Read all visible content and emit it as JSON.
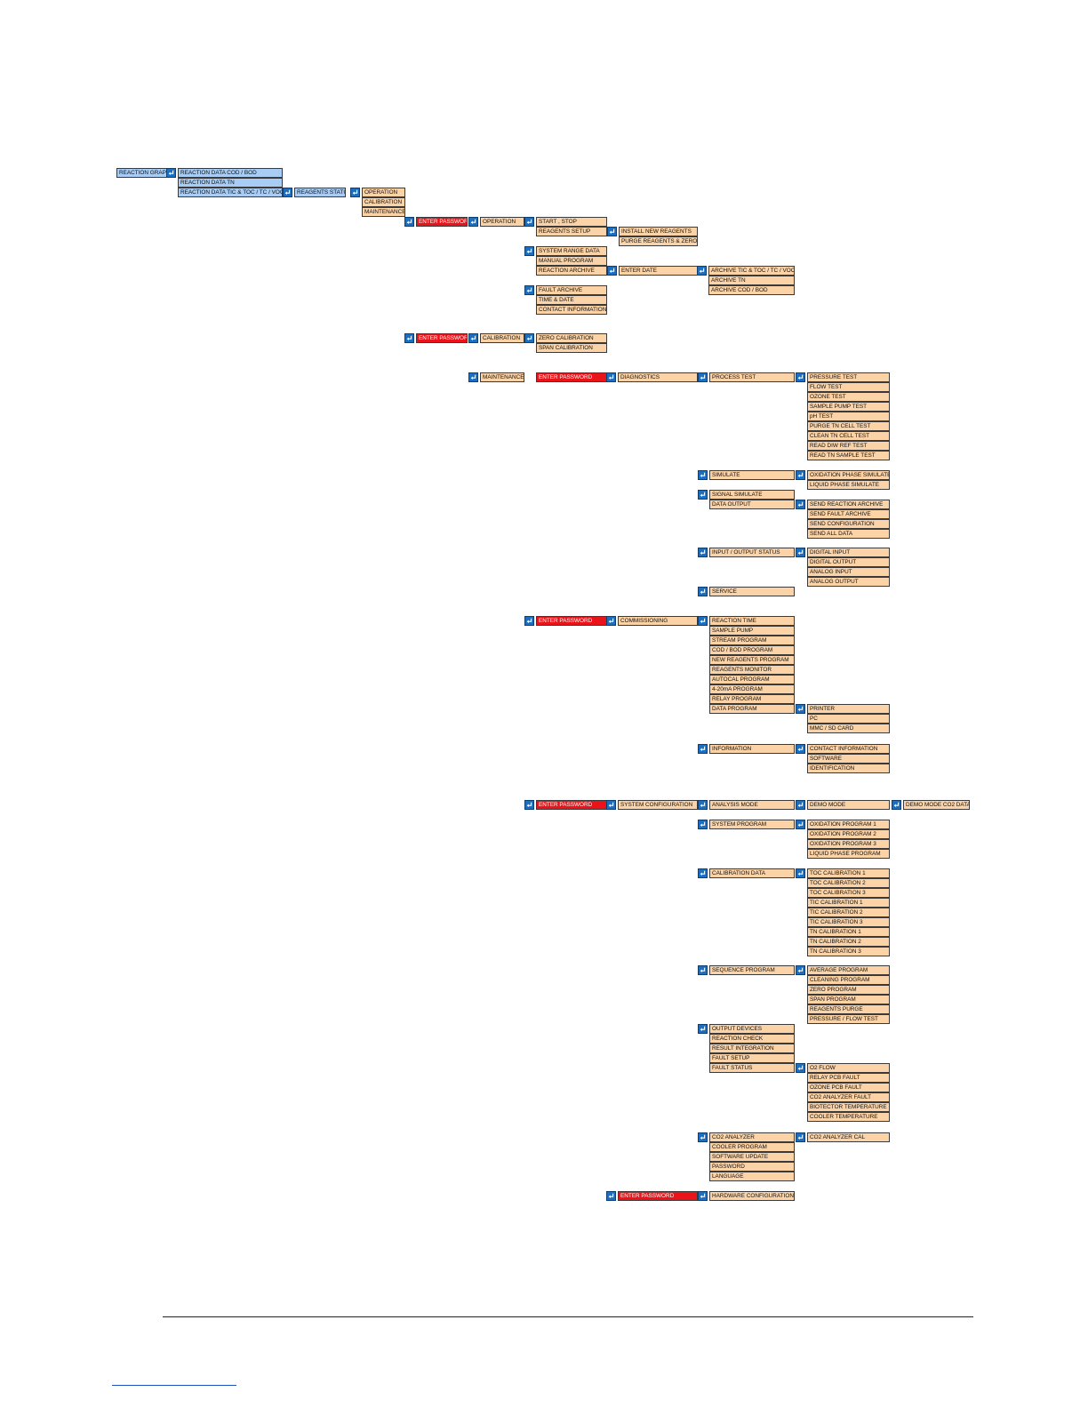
{
  "colors": {
    "menu": "#fbd3a7",
    "graph": "#a8ccf3",
    "password": "#e8141a",
    "enter_key": "#1c6fc0"
  },
  "icons": {
    "enter_key": "enter-arrow-icon"
  },
  "groups": [
    {
      "id": "g01",
      "fill": "blue",
      "items": [
        "REACTION GRAPH"
      ]
    },
    {
      "id": "g02",
      "fill": "blue",
      "items": [
        "REACTION DATA COD / BOD",
        "REACTION DATA TN",
        "REACTION DATA TIC & TOC / TC / VOC"
      ]
    },
    {
      "id": "g03",
      "fill": "blue",
      "items": [
        "REAGENTS STATUS"
      ]
    },
    {
      "id": "g04",
      "fill": "orange",
      "items": [
        "OPERATION",
        "CALIBRATION",
        "MAINTENANCE"
      ]
    },
    {
      "id": "g05",
      "fill": "red",
      "items": [
        "ENTER PASSWORD"
      ]
    },
    {
      "id": "g06",
      "fill": "orange",
      "items": [
        "OPERATION"
      ]
    },
    {
      "id": "g07",
      "fill": "orange",
      "items": [
        "START , STOP",
        "REAGENTS SETUP"
      ]
    },
    {
      "id": "g08",
      "fill": "orange",
      "items": [
        "INSTALL NEW REAGENTS",
        "PURGE REAGENTS & ZERO"
      ]
    },
    {
      "id": "g09",
      "fill": "orange",
      "items": [
        "SYSTEM RANGE DATA",
        "MANUAL PROGRAM",
        "REACTION ARCHIVE"
      ]
    },
    {
      "id": "g10",
      "fill": "orange",
      "items": [
        "ENTER DATE"
      ]
    },
    {
      "id": "g11",
      "fill": "orange",
      "items": [
        "ARCHIVE TIC & TOC / TC / VOC",
        "ARCHIVE TN",
        "ARCHIVE COD / BOD"
      ]
    },
    {
      "id": "g12",
      "fill": "orange",
      "items": [
        "FAULT ARCHIVE",
        "TIME & DATE",
        "CONTACT INFORMATION"
      ]
    },
    {
      "id": "g13",
      "fill": "red",
      "items": [
        "ENTER PASSWORD"
      ]
    },
    {
      "id": "g14",
      "fill": "orange",
      "items": [
        "CALIBRATION"
      ]
    },
    {
      "id": "g15",
      "fill": "orange",
      "items": [
        "ZERO CALIBRATION",
        "SPAN CALIBRATION"
      ]
    },
    {
      "id": "g16",
      "fill": "orange",
      "items": [
        "MAINTENANCE"
      ]
    },
    {
      "id": "g17",
      "fill": "red",
      "items": [
        "ENTER PASSWORD"
      ]
    },
    {
      "id": "g18",
      "fill": "orange",
      "items": [
        "DIAGNOSTICS"
      ]
    },
    {
      "id": "g19",
      "fill": "orange",
      "items": [
        "PROCESS TEST"
      ]
    },
    {
      "id": "g20",
      "fill": "orange",
      "items": [
        "PRESSURE TEST",
        "FLOW TEST",
        "OZONE TEST",
        "SAMPLE PUMP TEST",
        "pH TEST",
        "PURGE TN CELL TEST",
        "CLEAN TN CELL TEST",
        "READ DIW REF TEST",
        "READ TN SAMPLE TEST"
      ]
    },
    {
      "id": "g21",
      "fill": "orange",
      "items": [
        "SIMULATE"
      ]
    },
    {
      "id": "g22",
      "fill": "orange",
      "items": [
        "OXIDATION PHASE SIMULATE",
        "LIQUID PHASE SIMULATE"
      ]
    },
    {
      "id": "g23",
      "fill": "orange",
      "items": [
        "SIGNAL SIMULATE",
        "DATA OUTPUT"
      ]
    },
    {
      "id": "g24",
      "fill": "orange",
      "items": [
        "SEND REACTION ARCHIVE",
        "SEND FAULT ARCHIVE",
        "SEND CONFIGURATION",
        "SEND ALL DATA"
      ]
    },
    {
      "id": "g25",
      "fill": "orange",
      "items": [
        "INPUT / OUTPUT STATUS"
      ]
    },
    {
      "id": "g26",
      "fill": "orange",
      "items": [
        "DIGITAL INPUT",
        "DIGITAL OUTPUT",
        "ANALOG INPUT",
        "ANALOG OUTPUT"
      ]
    },
    {
      "id": "g27",
      "fill": "orange",
      "items": [
        "SERVICE"
      ]
    },
    {
      "id": "g28",
      "fill": "red",
      "items": [
        "ENTER PASSWORD"
      ]
    },
    {
      "id": "g29",
      "fill": "orange",
      "items": [
        "COMMISSIONING"
      ]
    },
    {
      "id": "g30",
      "fill": "orange",
      "items": [
        "REACTION TIME",
        "SAMPLE PUMP",
        "STREAM PROGRAM",
        "COD / BOD PROGRAM",
        "NEW REAGENTS PROGRAM",
        "REAGENTS MONITOR",
        "AUTOCAL PROGRAM",
        "4-20mA PROGRAM",
        "RELAY PROGRAM",
        "DATA PROGRAM"
      ]
    },
    {
      "id": "g31",
      "fill": "orange",
      "items": [
        "PRINTER",
        "PC",
        "MMC / SD CARD"
      ]
    },
    {
      "id": "g32",
      "fill": "orange",
      "items": [
        "INFORMATION"
      ]
    },
    {
      "id": "g33",
      "fill": "orange",
      "items": [
        "CONTACT INFORMATION",
        "SOFTWARE",
        "IDENTIFICATION"
      ]
    },
    {
      "id": "g34",
      "fill": "red",
      "items": [
        "ENTER PASSWORD"
      ]
    },
    {
      "id": "g35",
      "fill": "orange",
      "items": [
        "SYSTEM CONFIGURATION"
      ]
    },
    {
      "id": "g36",
      "fill": "orange",
      "items": [
        "ANALYSIS MODE"
      ]
    },
    {
      "id": "g37",
      "fill": "orange",
      "items": [
        "DEMO MODE"
      ]
    },
    {
      "id": "g38",
      "fill": "orange",
      "items": [
        "DEMO MODE CO2 DATA"
      ]
    },
    {
      "id": "g39",
      "fill": "orange",
      "items": [
        "SYSTEM PROGRAM"
      ]
    },
    {
      "id": "g40",
      "fill": "orange",
      "items": [
        "OXIDATION PROGRAM 1",
        "OXIDATION PROGRAM 2",
        "OXIDATION PROGRAM 3",
        "LIQUID PHASE PROGRAM"
      ]
    },
    {
      "id": "g41",
      "fill": "orange",
      "items": [
        "CALIBRATION DATA"
      ]
    },
    {
      "id": "g42",
      "fill": "orange",
      "items": [
        "TOC CALIBRATION 1",
        "TOC CALIBRATION 2",
        "TOC CALIBRATION 3",
        "TIC CALIBRATION 1",
        "TIC CALIBRATION 2",
        "TIC CALIBRATION 3",
        "TN CALIBRATION 1",
        "TN CALIBRATION 2",
        "TN CALIBRATION 3"
      ]
    },
    {
      "id": "g43",
      "fill": "orange",
      "items": [
        "SEQUENCE PROGRAM"
      ]
    },
    {
      "id": "g44",
      "fill": "orange",
      "items": [
        "AVERAGE PROGRAM",
        "CLEANING PROGRAM",
        "ZERO PROGRAM",
        "SPAN PROGRAM",
        "REAGENTS PURGE",
        "PRESSURE / FLOW TEST"
      ]
    },
    {
      "id": "g45",
      "fill": "orange",
      "items": [
        "OUTPUT DEVICES",
        "REACTION CHECK",
        "RESULT INTEGRATION",
        "FAULT SETUP",
        "FAULT STATUS"
      ]
    },
    {
      "id": "g46",
      "fill": "orange",
      "items": [
        "O2 FLOW",
        "RELAY PCB FAULT",
        "OZONE PCB FAULT",
        "CO2 ANALYZER FAULT",
        "BIOTECTOR TEMPERATURE",
        "COOLER TEMPERATURE"
      ]
    },
    {
      "id": "g47",
      "fill": "orange",
      "items": [
        "CO2 ANALYZER",
        "COOLER PROGRAM",
        "SOFTWARE UPDATE",
        "PASSWORD",
        "LANGUAGE"
      ]
    },
    {
      "id": "g48",
      "fill": "orange",
      "items": [
        "CO2 ANALYZER CAL"
      ]
    },
    {
      "id": "g49",
      "fill": "red",
      "items": [
        "ENTER PASSWORD"
      ]
    },
    {
      "id": "g50",
      "fill": "orange",
      "items": [
        "HARDWARE CONFIGURATION"
      ]
    }
  ]
}
